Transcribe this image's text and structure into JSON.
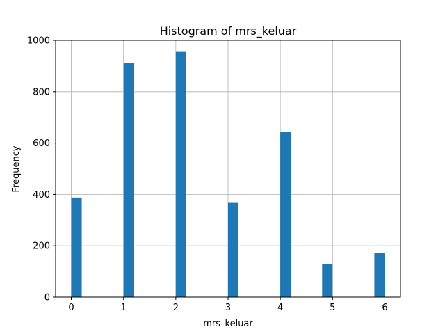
{
  "chart_data": {
    "type": "bar",
    "title": "Histogram of mrs_keluar",
    "xlabel": "mrs_keluar",
    "ylabel": "Frequency",
    "xlim": [
      -0.3,
      6.3
    ],
    "ylim": [
      0,
      1000
    ],
    "xticks": [
      0,
      1,
      2,
      3,
      4,
      5,
      6
    ],
    "yticks": [
      0,
      200,
      400,
      600,
      800,
      1000
    ],
    "grid": true,
    "bar_color": "#1f77b4",
    "bins": [
      {
        "x0": 0.0,
        "x1": 0.2,
        "value": 388
      },
      {
        "x0": 1.0,
        "x1": 1.2,
        "value": 911
      },
      {
        "x0": 2.0,
        "x1": 2.2,
        "value": 955
      },
      {
        "x0": 3.0,
        "x1": 3.2,
        "value": 367
      },
      {
        "x0": 4.0,
        "x1": 4.2,
        "value": 643
      },
      {
        "x0": 4.8,
        "x1": 5.0,
        "value": 130
      },
      {
        "x0": 5.8,
        "x1": 6.0,
        "value": 171
      }
    ]
  }
}
